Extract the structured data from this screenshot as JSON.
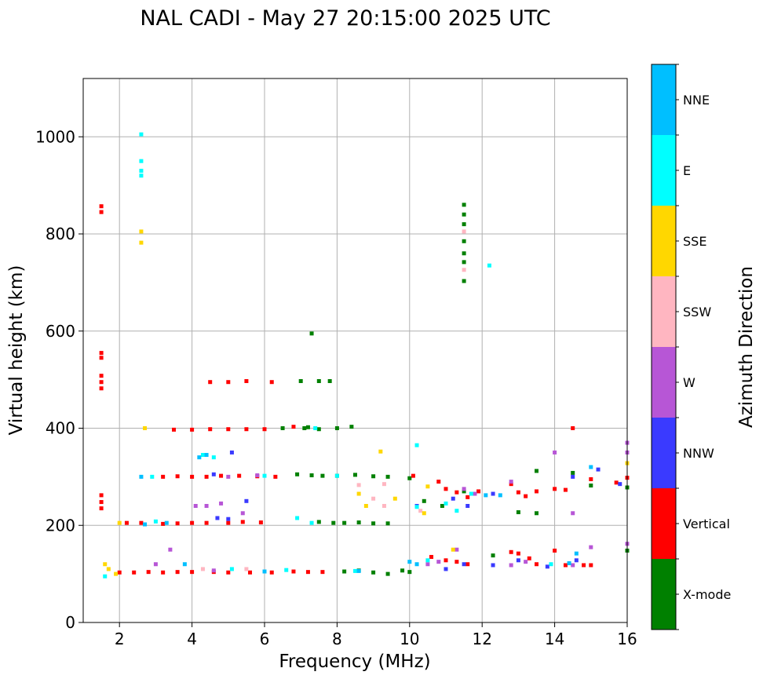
{
  "chart_data": {
    "type": "scatter",
    "title": "NAL CADI - May 27 20:15:00 2025 UTC",
    "xlabel": "Frequency (MHz)",
    "ylabel": "Virtual height (km)",
    "xlim": [
      1,
      16
    ],
    "ylim": [
      0,
      1120
    ],
    "xticks": [
      2,
      4,
      6,
      8,
      10,
      12,
      14,
      16
    ],
    "yticks": [
      0,
      200,
      400,
      600,
      800,
      1000
    ],
    "grid": true,
    "colorbar": {
      "label": "Azimuth Direction",
      "categories": [
        {
          "name": "X-mode",
          "color": "#008000"
        },
        {
          "name": "Vertical",
          "color": "#ff0000"
        },
        {
          "name": "NNW",
          "color": "#3a3aff"
        },
        {
          "name": "W",
          "color": "#b756d6"
        },
        {
          "name": "SSW",
          "color": "#ffb6c1"
        },
        {
          "name": "SSE",
          "color": "#ffd700"
        },
        {
          "name": "E",
          "color": "#00ffff"
        },
        {
          "name": "NNE",
          "color": "#00bfff"
        }
      ]
    },
    "series": [
      {
        "name": "X-mode",
        "points": [
          [
            7.3,
            595
          ],
          [
            11.5,
            860
          ],
          [
            11.5,
            840
          ],
          [
            11.5,
            820
          ],
          [
            11.5,
            785
          ],
          [
            11.5,
            760
          ],
          [
            11.5,
            742
          ],
          [
            11.5,
            703
          ],
          [
            7.0,
            497
          ],
          [
            7.5,
            497
          ],
          [
            7.8,
            497
          ],
          [
            6.5,
            400
          ],
          [
            7.1,
            400
          ],
          [
            7.2,
            402
          ],
          [
            7.5,
            398
          ],
          [
            8.0,
            400
          ],
          [
            8.4,
            403
          ],
          [
            6.9,
            305
          ],
          [
            7.3,
            303
          ],
          [
            7.6,
            302
          ],
          [
            8.0,
            302
          ],
          [
            8.5,
            304
          ],
          [
            9.0,
            301
          ],
          [
            9.4,
            300
          ],
          [
            10.0,
            297
          ],
          [
            7.5,
            207
          ],
          [
            7.9,
            205
          ],
          [
            8.2,
            205
          ],
          [
            8.6,
            206
          ],
          [
            9.0,
            204
          ],
          [
            9.4,
            204
          ],
          [
            10.4,
            250
          ],
          [
            10.9,
            240
          ],
          [
            11.5,
            270
          ],
          [
            13.0,
            227
          ],
          [
            13.5,
            225
          ],
          [
            15.0,
            282
          ],
          [
            16.0,
            278
          ],
          [
            14.5,
            308
          ],
          [
            13.5,
            312
          ],
          [
            8.2,
            105
          ],
          [
            8.6,
            107
          ],
          [
            9.0,
            103
          ],
          [
            9.4,
            100
          ],
          [
            9.8,
            107
          ],
          [
            10.0,
            104
          ],
          [
            16.0,
            148
          ],
          [
            12.3,
            138
          ]
        ]
      },
      {
        "name": "Vertical",
        "points": [
          [
            1.5,
            857
          ],
          [
            1.5,
            845
          ],
          [
            1.5,
            555
          ],
          [
            1.5,
            545
          ],
          [
            1.5,
            508
          ],
          [
            1.5,
            495
          ],
          [
            1.5,
            482
          ],
          [
            1.5,
            262
          ],
          [
            1.5,
            248
          ],
          [
            1.5,
            235
          ],
          [
            4.5,
            495
          ],
          [
            5.0,
            495
          ],
          [
            5.5,
            497
          ],
          [
            6.2,
            495
          ],
          [
            3.5,
            397
          ],
          [
            4.0,
            397
          ],
          [
            4.5,
            398
          ],
          [
            5.0,
            398
          ],
          [
            5.5,
            398
          ],
          [
            6.0,
            398
          ],
          [
            6.8,
            403
          ],
          [
            3.2,
            300
          ],
          [
            3.6,
            301
          ],
          [
            4.0,
            300
          ],
          [
            4.4,
            300
          ],
          [
            4.8,
            302
          ],
          [
            5.3,
            302
          ],
          [
            5.8,
            301
          ],
          [
            6.3,
            300
          ],
          [
            2.2,
            205
          ],
          [
            2.6,
            205
          ],
          [
            3.2,
            203
          ],
          [
            3.6,
            204
          ],
          [
            4.0,
            205
          ],
          [
            4.4,
            205
          ],
          [
            5.0,
            205
          ],
          [
            5.4,
            207
          ],
          [
            5.9,
            206
          ],
          [
            2.0,
            103
          ],
          [
            2.4,
            103
          ],
          [
            2.8,
            104
          ],
          [
            3.2,
            103
          ],
          [
            3.6,
            104
          ],
          [
            4.0,
            104
          ],
          [
            4.6,
            104
          ],
          [
            5.0,
            103
          ],
          [
            5.6,
            103
          ],
          [
            6.2,
            103
          ],
          [
            6.8,
            105
          ],
          [
            7.2,
            104
          ],
          [
            7.6,
            104
          ],
          [
            10.1,
            302
          ],
          [
            10.8,
            290
          ],
          [
            11.0,
            275
          ],
          [
            11.3,
            268
          ],
          [
            11.6,
            258
          ],
          [
            11.9,
            270
          ],
          [
            12.8,
            285
          ],
          [
            13.0,
            268
          ],
          [
            13.2,
            260
          ],
          [
            13.5,
            270
          ],
          [
            14.0,
            275
          ],
          [
            14.3,
            273
          ],
          [
            14.5,
            400
          ],
          [
            15.0,
            295
          ],
          [
            15.7,
            288
          ],
          [
            16.0,
            298
          ],
          [
            10.6,
            135
          ],
          [
            11.0,
            128
          ],
          [
            11.3,
            125
          ],
          [
            11.6,
            120
          ],
          [
            12.8,
            145
          ],
          [
            13.0,
            142
          ],
          [
            13.3,
            132
          ],
          [
            13.5,
            120
          ],
          [
            14.0,
            148
          ],
          [
            14.3,
            118
          ],
          [
            15.0,
            118
          ],
          [
            14.8,
            118
          ]
        ]
      },
      {
        "name": "NNW",
        "points": [
          [
            5.1,
            350
          ],
          [
            4.6,
            305
          ],
          [
            5.5,
            250
          ],
          [
            5.0,
            213
          ],
          [
            4.7,
            215
          ],
          [
            10.2,
            240
          ],
          [
            11.2,
            255
          ],
          [
            11.6,
            240
          ],
          [
            12.3,
            265
          ],
          [
            14.5,
            300
          ],
          [
            15.2,
            315
          ],
          [
            15.8,
            285
          ],
          [
            11.0,
            110
          ],
          [
            11.5,
            120
          ],
          [
            12.3,
            118
          ],
          [
            13.0,
            128
          ],
          [
            13.8,
            115
          ],
          [
            14.6,
            128
          ]
        ]
      },
      {
        "name": "W",
        "points": [
          [
            4.1,
            240
          ],
          [
            4.4,
            240
          ],
          [
            4.8,
            245
          ],
          [
            5.4,
            225
          ],
          [
            5.0,
            300
          ],
          [
            5.8,
            303
          ],
          [
            11.5,
            275
          ],
          [
            11.8,
            265
          ],
          [
            12.8,
            290
          ],
          [
            14.0,
            350
          ],
          [
            14.5,
            225
          ],
          [
            15.0,
            155
          ],
          [
            16.0,
            370
          ],
          [
            16.0,
            350
          ],
          [
            16.0,
            162
          ],
          [
            3.0,
            120
          ],
          [
            3.4,
            150
          ],
          [
            4.6,
            107
          ],
          [
            10.5,
            120
          ],
          [
            10.8,
            125
          ],
          [
            11.3,
            150
          ],
          [
            12.8,
            118
          ],
          [
            13.2,
            125
          ],
          [
            14.5,
            118
          ]
        ]
      },
      {
        "name": "SSW",
        "points": [
          [
            11.5,
            805
          ],
          [
            11.5,
            726
          ],
          [
            9.0,
            255
          ],
          [
            9.3,
            240
          ],
          [
            10.3,
            230
          ],
          [
            4.3,
            110
          ],
          [
            5.5,
            110
          ],
          [
            8.6,
            283
          ],
          [
            9.3,
            285
          ]
        ]
      },
      {
        "name": "SSE",
        "points": [
          [
            2.6,
            805
          ],
          [
            2.6,
            782
          ],
          [
            2.7,
            400
          ],
          [
            2.0,
            205
          ],
          [
            1.6,
            120
          ],
          [
            1.7,
            110
          ],
          [
            1.9,
            100
          ],
          [
            9.2,
            352
          ],
          [
            10.5,
            280
          ],
          [
            8.8,
            240
          ],
          [
            9.6,
            255
          ],
          [
            10.4,
            225
          ],
          [
            11.2,
            150
          ],
          [
            16.0,
            328
          ],
          [
            8.6,
            265
          ]
        ]
      },
      {
        "name": "E",
        "points": [
          [
            2.6,
            1005
          ],
          [
            2.6,
            950
          ],
          [
            2.6,
            930
          ],
          [
            2.6,
            920
          ],
          [
            4.3,
            345
          ],
          [
            4.6,
            340
          ],
          [
            10.2,
            365
          ],
          [
            10.2,
            238
          ],
          [
            11.0,
            245
          ],
          [
            11.3,
            230
          ],
          [
            12.2,
            735
          ],
          [
            2.9,
            300
          ],
          [
            3.0,
            208
          ],
          [
            6.0,
            302
          ],
          [
            7.4,
            400
          ],
          [
            8.0,
            302
          ],
          [
            6.9,
            215
          ],
          [
            7.3,
            205
          ],
          [
            8.5,
            106
          ],
          [
            5.1,
            110
          ],
          [
            6.6,
            108
          ],
          [
            1.6,
            95
          ],
          [
            10.5,
            128
          ],
          [
            11.7,
            265
          ],
          [
            13.9,
            120
          ]
        ]
      },
      {
        "name": "NNE",
        "points": [
          [
            2.6,
            300
          ],
          [
            4.2,
            340
          ],
          [
            4.4,
            345
          ],
          [
            3.3,
            205
          ],
          [
            3.8,
            120
          ],
          [
            6.0,
            105
          ],
          [
            8.6,
            106
          ],
          [
            10.0,
            125
          ],
          [
            10.2,
            120
          ],
          [
            12.1,
            262
          ],
          [
            12.5,
            262
          ],
          [
            14.4,
            122
          ],
          [
            14.6,
            142
          ],
          [
            15.0,
            320
          ],
          [
            2.7,
            202
          ]
        ]
      }
    ]
  }
}
